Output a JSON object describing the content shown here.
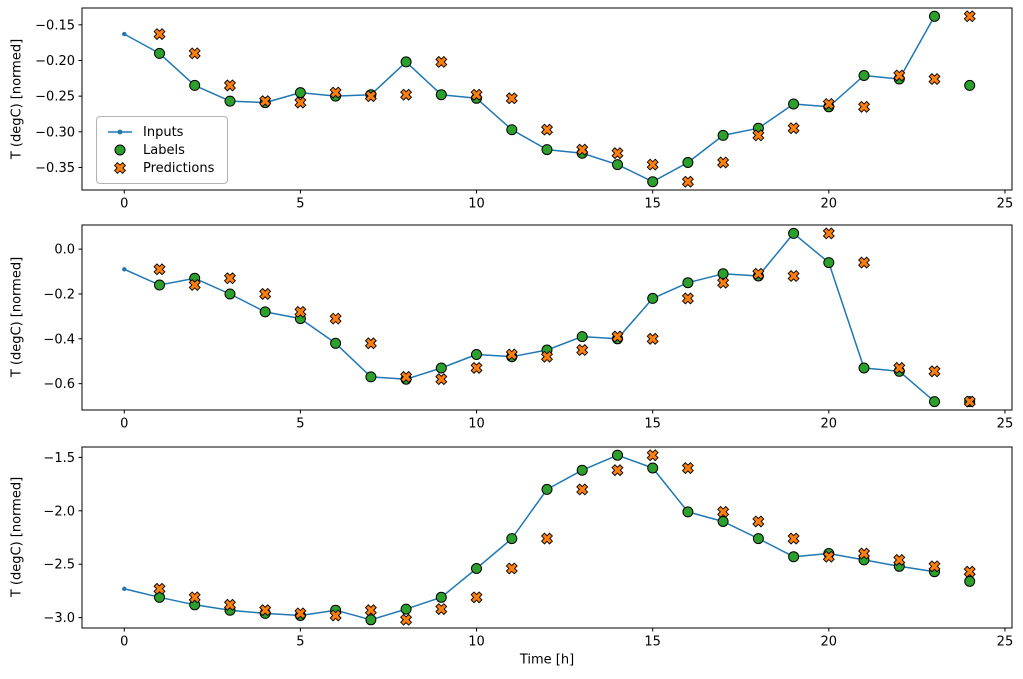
{
  "figure": {
    "xlabel": "Time [h]",
    "ylabel": "T (degC) [normed]",
    "background": "#ffffff",
    "frame_color": "#000000",
    "colors": {
      "inputs_line": "#1f77b4",
      "labels_marker": "#2ca02c",
      "predictions_marker": "#ff7f0e",
      "marker_edge": "#000000"
    }
  },
  "legend": {
    "position": "upper panel, center left",
    "entries": [
      {
        "label": "Inputs",
        "marker": "line-dot",
        "color": "#1f77b4"
      },
      {
        "label": "Labels",
        "marker": "filled-circle",
        "color": "#2ca02c"
      },
      {
        "label": "Predictions",
        "marker": "thick-x",
        "color": "#ff7f0e"
      }
    ]
  },
  "chart_data": [
    {
      "type": "line",
      "panel": 1,
      "title": "",
      "xlabel": "",
      "ylabel": "T (degC) [normed]",
      "grid": "off",
      "legend_position": "center left",
      "xlim": [
        -1.2,
        25.2
      ],
      "ylim": [
        -0.3816,
        -0.1264
      ],
      "xticks": [
        0,
        5,
        10,
        15,
        20,
        25
      ],
      "xtick_labels": [
        "0",
        "5",
        "10",
        "15",
        "20",
        "25"
      ],
      "yticks": [
        -0.15,
        -0.2,
        -0.25,
        -0.3,
        -0.35
      ],
      "ytick_labels": [
        "−0.15",
        "−0.20",
        "−0.25",
        "−0.30",
        "−0.35"
      ],
      "series": [
        {
          "name": "Inputs",
          "style": "line-dot",
          "x": [
            0,
            1,
            2,
            3,
            4,
            5,
            6,
            7,
            8,
            9,
            10,
            11,
            12,
            13,
            14,
            15,
            16,
            17,
            18,
            19,
            20,
            21,
            22,
            23
          ],
          "y": [
            -0.163,
            -0.19,
            -0.235,
            -0.257,
            -0.259,
            -0.245,
            -0.25,
            -0.248,
            -0.202,
            -0.248,
            -0.253,
            -0.297,
            -0.325,
            -0.33,
            -0.346,
            -0.37,
            -0.343,
            -0.305,
            -0.295,
            -0.261,
            -0.265,
            -0.221,
            -0.226,
            -0.138
          ]
        },
        {
          "name": "Labels",
          "style": "scatter-circle",
          "x": [
            1,
            2,
            3,
            4,
            5,
            6,
            7,
            8,
            9,
            10,
            11,
            12,
            13,
            14,
            15,
            16,
            17,
            18,
            19,
            20,
            21,
            22,
            23,
            24
          ],
          "y": [
            -0.19,
            -0.235,
            -0.257,
            -0.259,
            -0.245,
            -0.25,
            -0.248,
            -0.202,
            -0.248,
            -0.253,
            -0.297,
            -0.325,
            -0.33,
            -0.346,
            -0.37,
            -0.343,
            -0.305,
            -0.295,
            -0.261,
            -0.265,
            -0.221,
            -0.226,
            -0.138,
            -0.235
          ]
        },
        {
          "name": "Predictions",
          "style": "scatter-x",
          "x": [
            1,
            2,
            3,
            4,
            5,
            6,
            7,
            8,
            9,
            10,
            11,
            12,
            13,
            14,
            15,
            16,
            17,
            18,
            19,
            20,
            21,
            22,
            23,
            24
          ],
          "y": [
            -0.163,
            -0.19,
            -0.235,
            -0.257,
            -0.259,
            -0.245,
            -0.25,
            -0.248,
            -0.202,
            -0.248,
            -0.253,
            -0.297,
            -0.325,
            -0.33,
            -0.346,
            -0.37,
            -0.343,
            -0.305,
            -0.295,
            -0.261,
            -0.265,
            -0.221,
            -0.226,
            -0.138
          ]
        }
      ]
    },
    {
      "type": "line",
      "panel": 2,
      "title": "",
      "xlabel": "",
      "ylabel": "T (degC) [normed]",
      "grid": "off",
      "legend_position": "none",
      "xlim": [
        -1.2,
        25.2
      ],
      "ylim": [
        -0.7175,
        0.1075
      ],
      "xticks": [
        0,
        5,
        10,
        15,
        20,
        25
      ],
      "xtick_labels": [
        "0",
        "5",
        "10",
        "15",
        "20",
        "25"
      ],
      "yticks": [
        0.0,
        -0.2,
        -0.4,
        -0.6
      ],
      "ytick_labels": [
        "0.0",
        "−0.2",
        "−0.4",
        "−0.6"
      ],
      "series": [
        {
          "name": "Inputs",
          "style": "line-dot",
          "x": [
            0,
            1,
            2,
            3,
            4,
            5,
            6,
            7,
            8,
            9,
            10,
            11,
            12,
            13,
            14,
            15,
            16,
            17,
            18,
            19,
            20,
            21,
            22,
            23
          ],
          "y": [
            -0.09,
            -0.16,
            -0.13,
            -0.2,
            -0.28,
            -0.31,
            -0.42,
            -0.57,
            -0.58,
            -0.53,
            -0.47,
            -0.48,
            -0.45,
            -0.39,
            -0.4,
            -0.22,
            -0.15,
            -0.11,
            -0.12,
            0.07,
            -0.06,
            -0.53,
            -0.545,
            -0.68
          ]
        },
        {
          "name": "Labels",
          "style": "scatter-circle",
          "x": [
            1,
            2,
            3,
            4,
            5,
            6,
            7,
            8,
            9,
            10,
            11,
            12,
            13,
            14,
            15,
            16,
            17,
            18,
            19,
            20,
            21,
            22,
            23,
            24
          ],
          "y": [
            -0.16,
            -0.13,
            -0.2,
            -0.28,
            -0.31,
            -0.42,
            -0.57,
            -0.58,
            -0.53,
            -0.47,
            -0.48,
            -0.45,
            -0.39,
            -0.4,
            -0.22,
            -0.15,
            -0.11,
            -0.12,
            0.07,
            -0.06,
            -0.53,
            -0.545,
            -0.68,
            -0.68
          ]
        },
        {
          "name": "Predictions",
          "style": "scatter-x",
          "x": [
            1,
            2,
            3,
            4,
            5,
            6,
            7,
            8,
            9,
            10,
            11,
            12,
            13,
            14,
            15,
            16,
            17,
            18,
            19,
            20,
            21,
            22,
            23,
            24
          ],
          "y": [
            -0.09,
            -0.16,
            -0.13,
            -0.2,
            -0.28,
            -0.31,
            -0.42,
            -0.57,
            -0.58,
            -0.53,
            -0.47,
            -0.48,
            -0.45,
            -0.39,
            -0.4,
            -0.22,
            -0.15,
            -0.11,
            -0.12,
            0.07,
            -0.06,
            -0.53,
            -0.545,
            -0.68
          ]
        }
      ]
    },
    {
      "type": "line",
      "panel": 3,
      "title": "",
      "xlabel": "Time [h]",
      "ylabel": "T (degC) [normed]",
      "grid": "off",
      "legend_position": "none",
      "xlim": [
        -1.2,
        25.2
      ],
      "ylim": [
        -3.097,
        -1.403
      ],
      "xticks": [
        0,
        5,
        10,
        15,
        20,
        25
      ],
      "xtick_labels": [
        "0",
        "5",
        "10",
        "15",
        "20",
        "25"
      ],
      "yticks": [
        -1.5,
        -2.0,
        -2.5,
        -3.0
      ],
      "ytick_labels": [
        "−1.5",
        "−2.0",
        "−2.5",
        "−3.0"
      ],
      "series": [
        {
          "name": "Inputs",
          "style": "line-dot",
          "x": [
            0,
            1,
            2,
            3,
            4,
            5,
            6,
            7,
            8,
            9,
            10,
            11,
            12,
            13,
            14,
            15,
            16,
            17,
            18,
            19,
            20,
            21,
            22,
            23
          ],
          "y": [
            -2.73,
            -2.81,
            -2.88,
            -2.93,
            -2.96,
            -2.98,
            -2.93,
            -3.02,
            -2.92,
            -2.81,
            -2.54,
            -2.26,
            -1.8,
            -1.62,
            -1.48,
            -1.6,
            -2.01,
            -2.1,
            -2.26,
            -2.43,
            -2.4,
            -2.46,
            -2.52,
            -2.57
          ]
        },
        {
          "name": "Labels",
          "style": "scatter-circle",
          "x": [
            1,
            2,
            3,
            4,
            5,
            6,
            7,
            8,
            9,
            10,
            11,
            12,
            13,
            14,
            15,
            16,
            17,
            18,
            19,
            20,
            21,
            22,
            23,
            24
          ],
          "y": [
            -2.81,
            -2.88,
            -2.93,
            -2.96,
            -2.98,
            -2.93,
            -3.02,
            -2.92,
            -2.81,
            -2.54,
            -2.26,
            -1.8,
            -1.62,
            -1.48,
            -1.6,
            -2.01,
            -2.1,
            -2.26,
            -2.43,
            -2.4,
            -2.46,
            -2.52,
            -2.57,
            -2.66
          ]
        },
        {
          "name": "Predictions",
          "style": "scatter-x",
          "x": [
            1,
            2,
            3,
            4,
            5,
            6,
            7,
            8,
            9,
            10,
            11,
            12,
            13,
            14,
            15,
            16,
            17,
            18,
            19,
            20,
            21,
            22,
            23,
            24
          ],
          "y": [
            -2.73,
            -2.81,
            -2.88,
            -2.93,
            -2.96,
            -2.98,
            -2.93,
            -3.02,
            -2.92,
            -2.81,
            -2.54,
            -2.26,
            -1.8,
            -1.62,
            -1.48,
            -1.6,
            -2.01,
            -2.1,
            -2.26,
            -2.43,
            -2.4,
            -2.46,
            -2.52,
            -2.57
          ]
        }
      ]
    }
  ]
}
